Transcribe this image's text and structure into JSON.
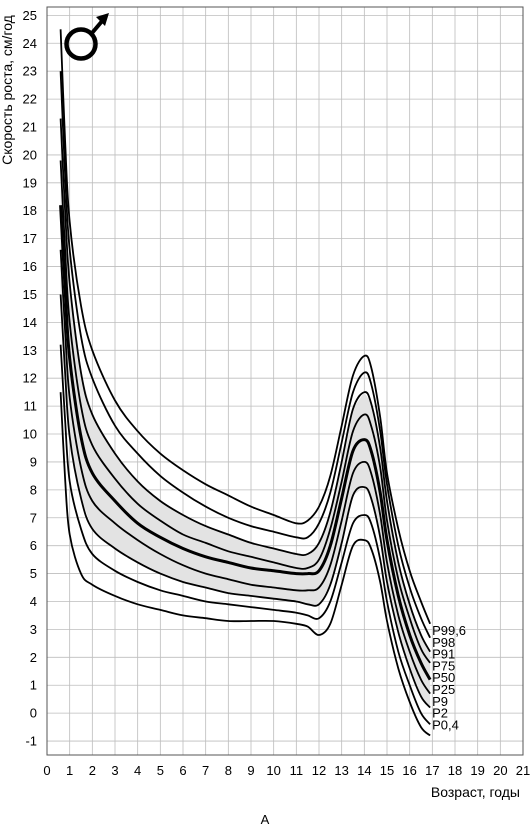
{
  "chart_data": {
    "type": "line",
    "title": "",
    "xlabel": "Возраст, годы",
    "ylabel": "Скорость роста, см/год",
    "caption": "А",
    "symbol": "male-symbol",
    "xlim": [
      0,
      21
    ],
    "ylim": [
      -1.5,
      25.3
    ],
    "x_ticks": [
      "0",
      "1",
      "2",
      "3",
      "4",
      "5",
      "6",
      "7",
      "8",
      "9",
      "10",
      "11",
      "12",
      "13",
      "14",
      "15",
      "16",
      "17",
      "18",
      "19",
      "20",
      "21"
    ],
    "y_ticks": [
      "-1",
      "0",
      "1",
      "2",
      "3",
      "4",
      "5",
      "6",
      "7",
      "8",
      "9",
      "10",
      "11",
      "12",
      "13",
      "14",
      "15",
      "16",
      "17",
      "18",
      "19",
      "20",
      "21",
      "22",
      "23",
      "24",
      "25"
    ],
    "grid": true,
    "shaded_band": [
      "P9",
      "P91"
    ],
    "colors": {
      "line": "#000000",
      "band": "#e3e3e3",
      "grid": "#bdbdbd"
    },
    "series": [
      {
        "name": "P99,6",
        "x": [
          0.6,
          0.8,
          1,
          1.5,
          2,
          3,
          4,
          5,
          6,
          7,
          8,
          9,
          10,
          11,
          11.5,
          12,
          12.5,
          13,
          13.5,
          14,
          14.3,
          14.7,
          15,
          15.5,
          16,
          16.5,
          16.9
        ],
        "y": [
          24.5,
          20.5,
          17.6,
          14.6,
          13,
          11.2,
          10.1,
          9.3,
          8.7,
          8.2,
          7.8,
          7.4,
          7.1,
          6.8,
          6.9,
          7.4,
          8.5,
          10.3,
          12.1,
          12.8,
          12.4,
          10.6,
          8.6,
          6.6,
          5.1,
          4,
          3.2
        ]
      },
      {
        "name": "P98",
        "x": [
          0.6,
          0.8,
          1,
          1.5,
          2,
          3,
          4,
          5,
          6,
          7,
          8,
          9,
          10,
          11,
          11.5,
          12,
          12.5,
          13,
          13.5,
          14,
          14.3,
          14.7,
          15,
          15.5,
          16,
          16.5,
          16.9
        ],
        "y": [
          23,
          19.3,
          16.6,
          13.5,
          12,
          10.3,
          9.3,
          8.5,
          7.9,
          7.4,
          7,
          6.7,
          6.5,
          6.3,
          6.3,
          6.8,
          7.9,
          9.7,
          11.5,
          12.2,
          11.8,
          10.1,
          8.2,
          6,
          4.5,
          3.4,
          2.7
        ]
      },
      {
        "name": "P91",
        "x": [
          0.6,
          0.8,
          1,
          1.5,
          2,
          3,
          4,
          5,
          6,
          7,
          8,
          9,
          10,
          11,
          11.5,
          12,
          12.5,
          13,
          13.5,
          14,
          14.3,
          14.7,
          15,
          15.5,
          16,
          16.5,
          16.9
        ],
        "y": [
          21.3,
          18,
          15.4,
          12.2,
          10.7,
          9.3,
          8.3,
          7.6,
          7.1,
          6.7,
          6.4,
          6.1,
          5.9,
          5.7,
          5.7,
          6.1,
          7.2,
          9,
          10.9,
          11.5,
          11.1,
          9.5,
          7.6,
          5.4,
          3.9,
          2.8,
          2.2
        ]
      },
      {
        "name": "P75",
        "x": [
          0.6,
          0.8,
          1,
          1.5,
          2,
          3,
          4,
          5,
          6,
          7,
          8,
          9,
          10,
          11,
          11.5,
          12,
          12.5,
          13,
          13.5,
          14,
          14.3,
          14.7,
          15,
          15.5,
          16,
          16.5,
          16.9
        ],
        "y": [
          19.8,
          16.6,
          14,
          11,
          9.6,
          8.4,
          7.5,
          6.9,
          6.4,
          6.1,
          5.8,
          5.6,
          5.4,
          5.2,
          5.2,
          5.5,
          6.6,
          8.3,
          10.1,
          10.7,
          10.3,
          8.8,
          6.9,
          4.8,
          3.4,
          2.3,
          1.8
        ]
      },
      {
        "name": "P50",
        "x": [
          0.6,
          0.8,
          1,
          1.5,
          2,
          3,
          4,
          5,
          6,
          7,
          8,
          9,
          10,
          11,
          11.5,
          12,
          12.5,
          13,
          13.5,
          14,
          14.3,
          14.7,
          15,
          15.5,
          16,
          16.5,
          16.9
        ],
        "y": [
          18.2,
          15.2,
          12.7,
          9.9,
          8.6,
          7.6,
          6.8,
          6.3,
          5.9,
          5.6,
          5.4,
          5.2,
          5.1,
          5,
          5,
          5.1,
          6,
          7.7,
          9.4,
          9.8,
          9.4,
          7.9,
          6.2,
          4.2,
          2.8,
          1.8,
          1.2
        ]
      },
      {
        "name": "P25",
        "x": [
          0.6,
          0.8,
          1,
          1.5,
          2,
          3,
          4,
          5,
          6,
          7,
          8,
          9,
          10,
          11,
          11.5,
          12,
          12.5,
          13,
          13.5,
          14,
          14.3,
          14.7,
          15,
          15.5,
          16,
          16.5,
          16.9
        ],
        "y": [
          16.6,
          13.7,
          11.3,
          8.8,
          7.6,
          6.8,
          6.2,
          5.7,
          5.3,
          5,
          4.8,
          4.6,
          4.5,
          4.4,
          4.4,
          4.5,
          5.3,
          6.9,
          8.6,
          9,
          8.6,
          7.1,
          5.4,
          3.5,
          2.2,
          1.2,
          0.7
        ]
      },
      {
        "name": "P9",
        "x": [
          0.6,
          0.8,
          1,
          1.5,
          2,
          3,
          4,
          5,
          6,
          7,
          8,
          9,
          10,
          11,
          11.5,
          12,
          12.5,
          13,
          13.5,
          14,
          14.3,
          14.7,
          15,
          15.5,
          16,
          16.5,
          16.9
        ],
        "y": [
          15,
          12.2,
          9.9,
          7.7,
          6.6,
          5.9,
          5.4,
          5,
          4.7,
          4.5,
          4.3,
          4.2,
          4.1,
          4,
          3.9,
          3.9,
          4.6,
          6.1,
          7.8,
          8.1,
          7.7,
          6.3,
          4.7,
          2.9,
          1.6,
          0.6,
          0.2
        ]
      },
      {
        "name": "P2",
        "x": [
          0.6,
          0.8,
          1,
          1.5,
          2,
          3,
          4,
          5,
          6,
          7,
          8,
          9,
          10,
          11,
          11.5,
          12,
          12.5,
          13,
          13.5,
          14,
          14.3,
          14.7,
          15,
          15.5,
          16,
          16.5,
          16.9
        ],
        "y": [
          13.2,
          10.5,
          8.3,
          6.6,
          5.7,
          5.1,
          4.7,
          4.4,
          4.2,
          4,
          3.9,
          3.8,
          3.7,
          3.6,
          3.5,
          3.4,
          4,
          5.4,
          6.8,
          7.1,
          6.8,
          5.5,
          4,
          2.2,
          1,
          0,
          -0.4
        ]
      },
      {
        "name": "P0,4",
        "x": [
          0.6,
          0.8,
          1,
          1.5,
          2,
          3,
          4,
          5,
          6,
          7,
          8,
          9,
          10,
          11,
          11.5,
          12,
          12.5,
          13,
          13.5,
          14,
          14.3,
          14.7,
          15,
          15.5,
          16,
          16.5,
          16.9
        ],
        "y": [
          11.5,
          8.4,
          6.4,
          5,
          4.6,
          4.2,
          3.9,
          3.7,
          3.5,
          3.4,
          3.3,
          3.3,
          3.3,
          3.2,
          3.1,
          2.8,
          3.2,
          4.6,
          6,
          6.2,
          5.9,
          4.7,
          3.3,
          1.6,
          0.4,
          -0.5,
          -0.8
        ]
      }
    ]
  }
}
